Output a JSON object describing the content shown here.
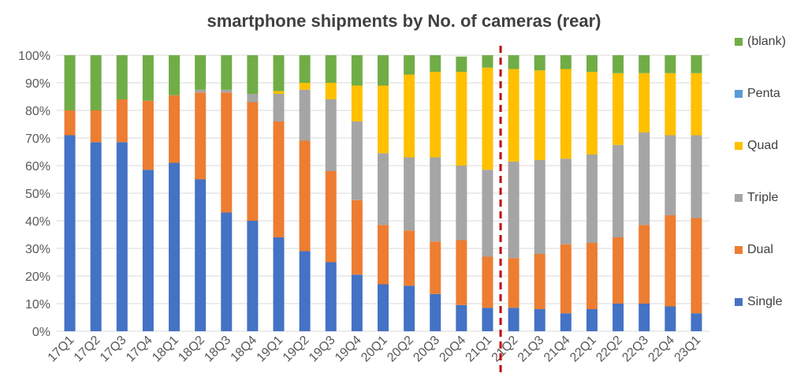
{
  "chart_data": {
    "type": "bar",
    "stacked": true,
    "title": "smartphone shipments by No. of cameras (rear)",
    "xlabel": "",
    "ylabel": "",
    "ylim": [
      0,
      100
    ],
    "yticks": [
      "0%",
      "10%",
      "20%",
      "30%",
      "40%",
      "50%",
      "60%",
      "70%",
      "80%",
      "90%",
      "100%"
    ],
    "categories": [
      "17Q1",
      "17Q2",
      "17Q3",
      "17Q4",
      "18Q1",
      "18Q2",
      "18Q3",
      "18Q4",
      "19Q1",
      "19Q2",
      "19Q3",
      "19Q4",
      "20Q1",
      "20Q2",
      "20Q3",
      "20Q4",
      "21Q1",
      "21Q2",
      "21Q3",
      "21Q4",
      "22Q1",
      "22Q2",
      "22Q3",
      "22Q4",
      "23Q1"
    ],
    "series": [
      {
        "name": "Single",
        "color": "#4472C4",
        "values": [
          71,
          68.5,
          68.5,
          58.5,
          61,
          55,
          43,
          40,
          34,
          29,
          25,
          20.5,
          17,
          16.5,
          13.5,
          9.5,
          8.5,
          8.5,
          8,
          6.5,
          8,
          10,
          10,
          9,
          6.5
        ]
      },
      {
        "name": "Dual",
        "color": "#ED7D31",
        "values": [
          9,
          11.5,
          15.5,
          25,
          24.5,
          31.5,
          43.5,
          43,
          42,
          40,
          33,
          27,
          21.5,
          20,
          19,
          23.5,
          18.5,
          18,
          20,
          25,
          24,
          24,
          28.5,
          33,
          34.5
        ]
      },
      {
        "name": "Triple",
        "color": "#A5A5A5",
        "values": [
          0,
          0,
          0,
          0,
          0,
          1,
          1,
          3,
          10,
          18.5,
          26,
          28.5,
          26,
          26.5,
          30.5,
          27,
          31.5,
          35,
          34,
          31,
          32,
          33.5,
          33.5,
          29,
          30
        ]
      },
      {
        "name": "Quad",
        "color": "#FFC000",
        "values": [
          0,
          0,
          0,
          0,
          0,
          0,
          0,
          0,
          1,
          2.5,
          6,
          13,
          24.5,
          30,
          31,
          34,
          37,
          33.5,
          32.5,
          32.5,
          30,
          26,
          21.5,
          22.5,
          22.5
        ]
      },
      {
        "name": "Penta",
        "color": "#5B9BD5",
        "values": [
          0,
          0,
          0,
          0,
          0,
          0,
          0,
          0,
          0,
          0,
          0,
          0,
          0,
          0,
          0,
          0,
          0,
          0,
          0,
          0,
          0,
          0,
          0,
          0,
          0
        ]
      },
      {
        "name": "(blank)",
        "color": "#70AD47",
        "values": [
          20,
          20,
          16,
          16.5,
          14.5,
          12.5,
          12.5,
          14,
          13,
          10,
          10,
          11,
          11,
          7,
          6,
          5.5,
          4.5,
          5,
          5.5,
          5,
          6,
          6.5,
          6.5,
          6.5,
          6.5
        ]
      }
    ],
    "legend_order": [
      "(blank)",
      "Penta",
      "Quad",
      "Triple",
      "Dual",
      "Single"
    ],
    "legend_position": "right",
    "grid": true,
    "divider_between": [
      "21Q1",
      "21Q2"
    ],
    "divider_color": "#C00000"
  }
}
